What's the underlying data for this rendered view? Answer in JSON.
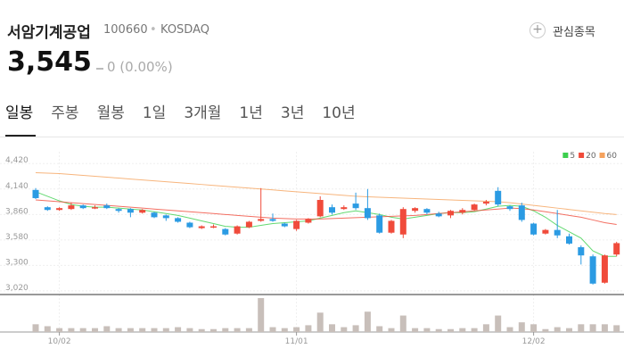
{
  "header": {
    "name": "서암기계공업",
    "code": "100660",
    "market": "KOSDAQ",
    "watch": "관심종목"
  },
  "price": {
    "value": "3,545",
    "change": "0 (0.00%)"
  },
  "tabs": [
    "일봉",
    "주봉",
    "월봉",
    "1일",
    "3개월",
    "1년",
    "3년",
    "10년"
  ],
  "chart_data": {
    "type": "candlestick",
    "categories": [
      null,
      null,
      "10/02",
      null,
      null,
      null,
      null,
      null,
      null,
      null,
      null,
      null,
      null,
      null,
      null,
      null,
      null,
      null,
      null,
      null,
      null,
      null,
      "11/01",
      null,
      null,
      null,
      null,
      null,
      null,
      null,
      null,
      null,
      null,
      null,
      null,
      null,
      null,
      null,
      null,
      null,
      null,
      null,
      "12/02",
      null,
      null,
      null,
      null,
      null,
      null,
      null
    ],
    "open": [
      4130,
      3940,
      3910,
      3920,
      3960,
      3930,
      3960,
      3920,
      3920,
      3880,
      3880,
      3850,
      3820,
      3770,
      3710,
      3720,
      3700,
      3650,
      3720,
      3790,
      3810,
      3760,
      3700,
      3770,
      3840,
      3940,
      3920,
      3980,
      3930,
      3850,
      3660,
      3640,
      3900,
      3920,
      3870,
      3850,
      3880,
      3910,
      3980,
      4120,
      3950,
      3960,
      3760,
      3650,
      3690,
      3620,
      3500,
      3400,
      3110,
      3420
    ],
    "high": [
      4150,
      3950,
      3940,
      3990,
      3970,
      3960,
      3980,
      3930,
      3930,
      3920,
      3890,
      3860,
      3830,
      3780,
      3740,
      3750,
      3710,
      3740,
      3790,
      4150,
      3870,
      3770,
      3800,
      3820,
      4060,
      3970,
      3960,
      4100,
      4140,
      3870,
      3800,
      3940,
      3940,
      3930,
      3890,
      3910,
      3930,
      3980,
      4020,
      4160,
      3960,
      3990,
      3770,
      3700,
      3910,
      3650,
      3520,
      3420,
      3420,
      3560
    ],
    "low": [
      4030,
      3900,
      3900,
      3910,
      3920,
      3920,
      3920,
      3880,
      3830,
      3870,
      3820,
      3790,
      3770,
      3710,
      3700,
      3710,
      3630,
      3640,
      3710,
      3780,
      3780,
      3720,
      3680,
      3760,
      3830,
      3860,
      3910,
      3910,
      3800,
      3650,
      3650,
      3600,
      3880,
      3860,
      3830,
      3820,
      3860,
      3900,
      3960,
      3950,
      3900,
      3780,
      3630,
      3640,
      3600,
      3530,
      3310,
      3090,
      3100,
      3400
    ],
    "close": [
      4040,
      3910,
      3930,
      3960,
      3930,
      3940,
      3930,
      3900,
      3880,
      3910,
      3830,
      3820,
      3780,
      3720,
      3730,
      3730,
      3640,
      3730,
      3780,
      3810,
      3790,
      3730,
      3790,
      3810,
      4020,
      3880,
      3940,
      3930,
      3820,
      3660,
      3790,
      3920,
      3930,
      3880,
      3840,
      3900,
      3910,
      3970,
      4000,
      3970,
      3920,
      3800,
      3640,
      3690,
      3630,
      3540,
      3410,
      3100,
      3410,
      3545
    ],
    "up_color": "#f04b3b",
    "down_color": "#2b9be3",
    "ylim": [
      2980,
      4550
    ],
    "yticks": [
      {
        "value": 3020,
        "label": "3,020"
      },
      {
        "value": 3300,
        "label": "3,300"
      },
      {
        "value": 3580,
        "label": "3,580"
      },
      {
        "value": 3860,
        "label": "3,860"
      },
      {
        "value": 4140,
        "label": "4,140"
      },
      {
        "value": 4420,
        "label": "4,420"
      }
    ],
    "grid": true,
    "series": [
      {
        "name": "5",
        "color": "#3ccf4e",
        "values": [
          4110,
          4060,
          4010,
          3970,
          3950,
          3940,
          3940,
          3930,
          3920,
          3910,
          3890,
          3870,
          3850,
          3820,
          3790,
          3760,
          3730,
          3720,
          3720,
          3740,
          3760,
          3770,
          3780,
          3790,
          3820,
          3850,
          3880,
          3900,
          3880,
          3860,
          3830,
          3810,
          3830,
          3850,
          3870,
          3880,
          3880,
          3890,
          3920,
          3950,
          3960,
          3950,
          3900,
          3830,
          3740,
          3670,
          3600,
          3460,
          3400,
          3400
        ]
      },
      {
        "name": "20",
        "color": "#f04b3b",
        "values": [
          4020,
          4010,
          4000,
          3990,
          3980,
          3970,
          3960,
          3950,
          3940,
          3930,
          3920,
          3910,
          3900,
          3890,
          3880,
          3870,
          3860,
          3850,
          3840,
          3830,
          3820,
          3815,
          3810,
          3810,
          3810,
          3815,
          3820,
          3825,
          3830,
          3835,
          3840,
          3845,
          3850,
          3860,
          3870,
          3880,
          3890,
          3900,
          3910,
          3920,
          3930,
          3925,
          3910,
          3890,
          3870,
          3850,
          3830,
          3800,
          3770,
          3750
        ]
      },
      {
        "name": "60",
        "color": "#f5a25d",
        "values": [
          4320,
          4315,
          4310,
          4300,
          4290,
          4280,
          4270,
          4260,
          4250,
          4240,
          4230,
          4220,
          4210,
          4200,
          4190,
          4180,
          4170,
          4160,
          4150,
          4140,
          4130,
          4120,
          4110,
          4100,
          4090,
          4080,
          4070,
          4060,
          4055,
          4050,
          4045,
          4040,
          4035,
          4030,
          4025,
          4020,
          4015,
          4010,
          4005,
          4000,
          3990,
          3975,
          3960,
          3945,
          3930,
          3915,
          3900,
          3885,
          3870,
          3860
        ]
      }
    ],
    "legend": "top-right",
    "volume": {
      "color": "#c8bfba",
      "values": [
        8,
        6,
        4,
        4,
        4,
        4,
        6,
        4,
        4,
        4,
        4,
        4,
        5,
        4,
        3,
        3,
        4,
        4,
        4,
        35,
        5,
        4,
        5,
        7,
        20,
        8,
        5,
        7,
        21,
        6,
        4,
        17,
        4,
        4,
        3,
        3,
        4,
        4,
        8,
        17,
        5,
        10,
        8,
        3,
        5,
        4,
        8,
        8,
        8,
        7
      ]
    }
  }
}
